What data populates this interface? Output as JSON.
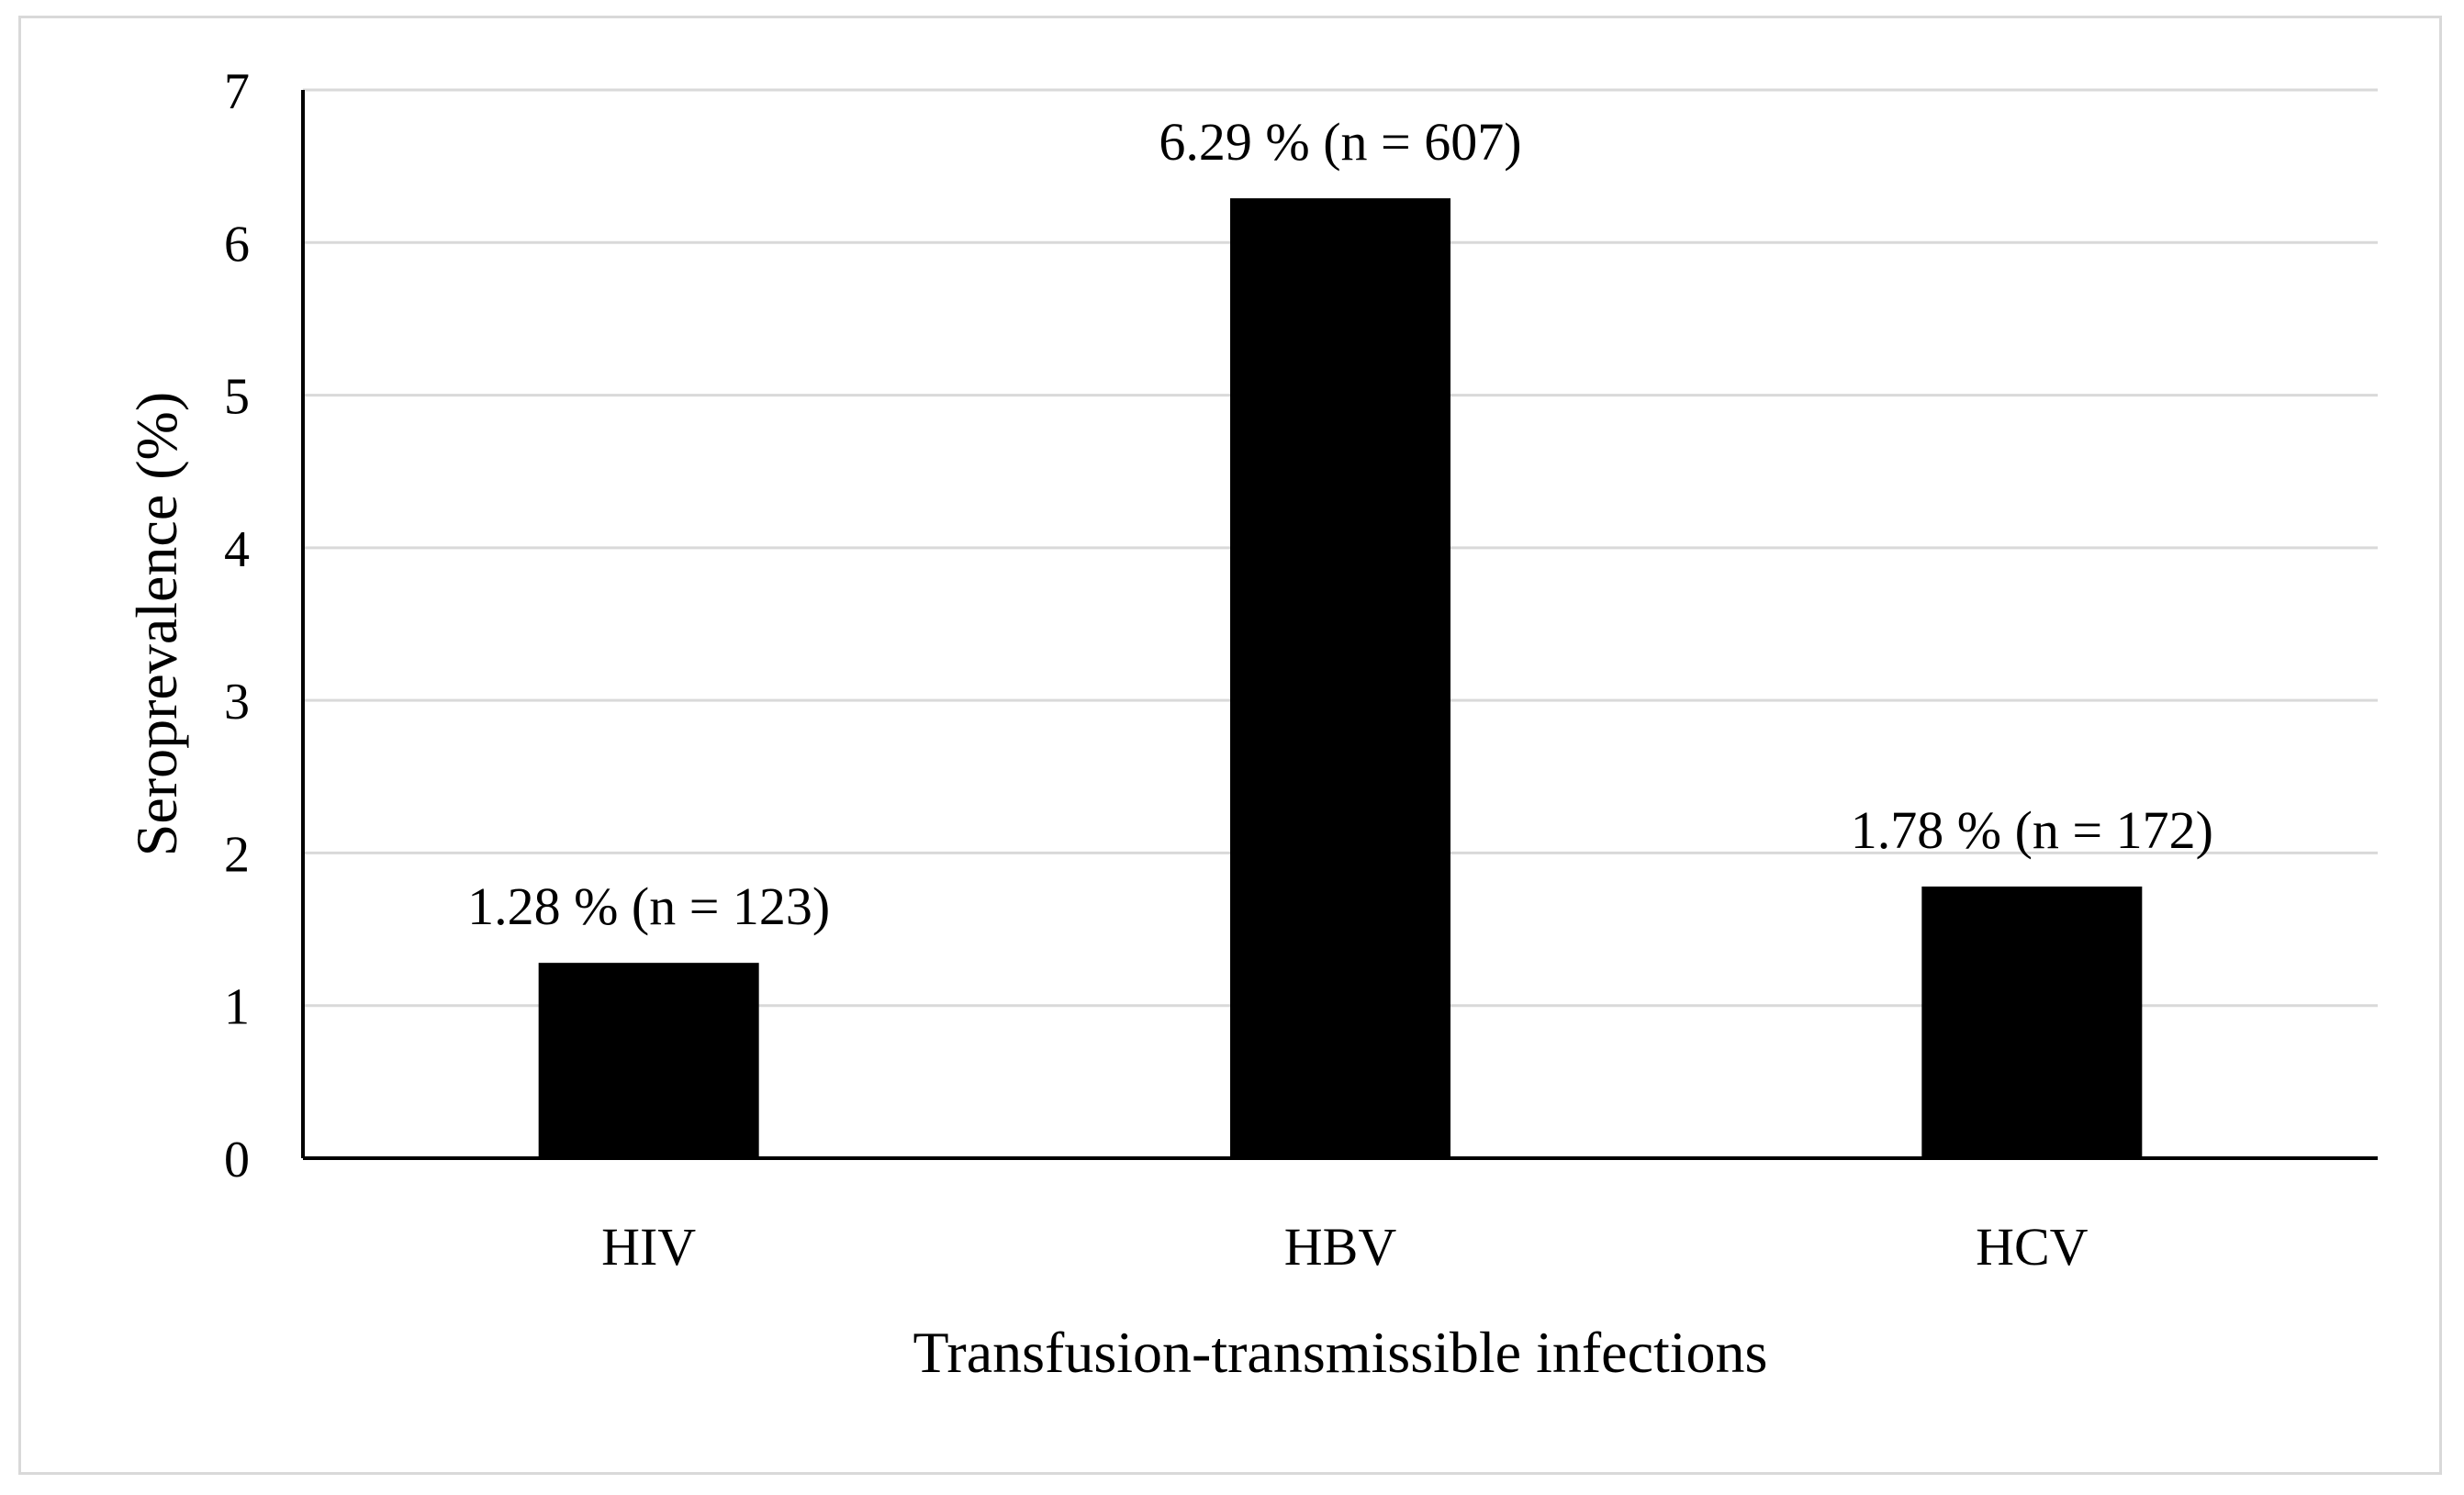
{
  "chart_data": {
    "type": "bar",
    "title": "",
    "xlabel": "Transfusion-transmissible infections",
    "ylabel": "Seroprevalence (%)",
    "categories": [
      "HIV",
      "HBV",
      "HCV"
    ],
    "values": [
      1.28,
      6.29,
      1.78
    ],
    "data_labels": [
      "1.28 % (n = 123)",
      "6.29 % (n = 607)",
      "1.78 % (n = 172)"
    ],
    "ylim": [
      0,
      7
    ],
    "yticks": [
      "0",
      "1",
      "2",
      "3",
      "4",
      "5",
      "6",
      "7"
    ],
    "grid": true,
    "legend": "none",
    "bar_color": "#000000",
    "grid_color": "#d9d9d9"
  }
}
